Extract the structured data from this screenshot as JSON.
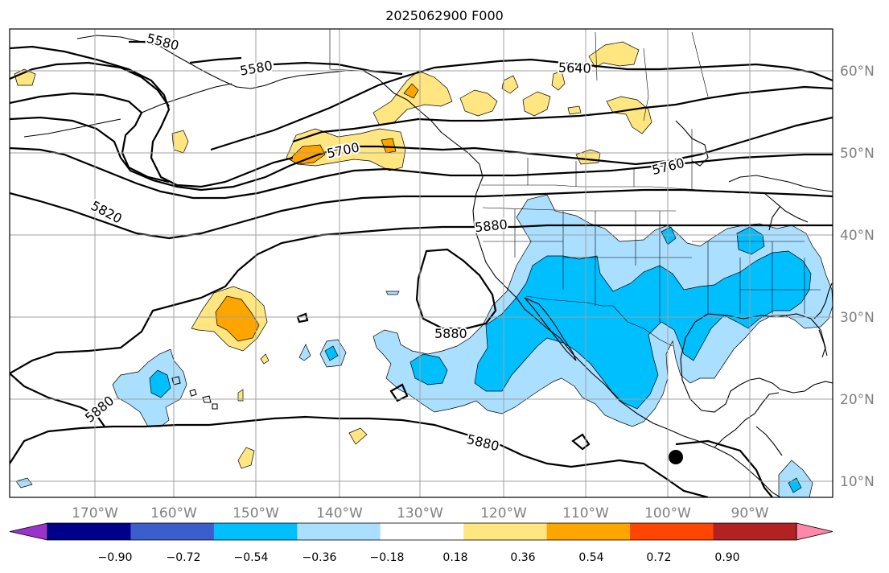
{
  "title": "2025062900 F000",
  "map": {
    "lon_labels": [
      "170°W",
      "160°W",
      "150°W",
      "140°W",
      "130°W",
      "120°W",
      "110°W",
      "100°W",
      "90°W"
    ],
    "lat_labels": [
      "60°N",
      "50°N",
      "40°N",
      "30°N",
      "20°N",
      "10°N"
    ],
    "contour_labels": [
      "5580",
      "5580",
      "5640",
      "5700",
      "5760",
      "5820",
      "5880",
      "5880",
      "5880",
      "5880"
    ],
    "storm_marker": "filled-circle",
    "colors": {
      "contour": "#000000",
      "gridline": "#a0a0a0",
      "coastline": "#000000"
    }
  },
  "colorbar": {
    "extend": "both",
    "colors": [
      "#9933cc",
      "#00008b",
      "#3a5fcd",
      "#00bfff",
      "#aadfff",
      "#ffffff",
      "#ffe680",
      "#ffa500",
      "#ff4500",
      "#b22222",
      "#ff88aa"
    ],
    "tick_labels": [
      "−0.90",
      "−0.72",
      "−0.54",
      "−0.36",
      "−0.18",
      "0.18",
      "0.36",
      "0.54",
      "0.72",
      "0.90"
    ]
  }
}
